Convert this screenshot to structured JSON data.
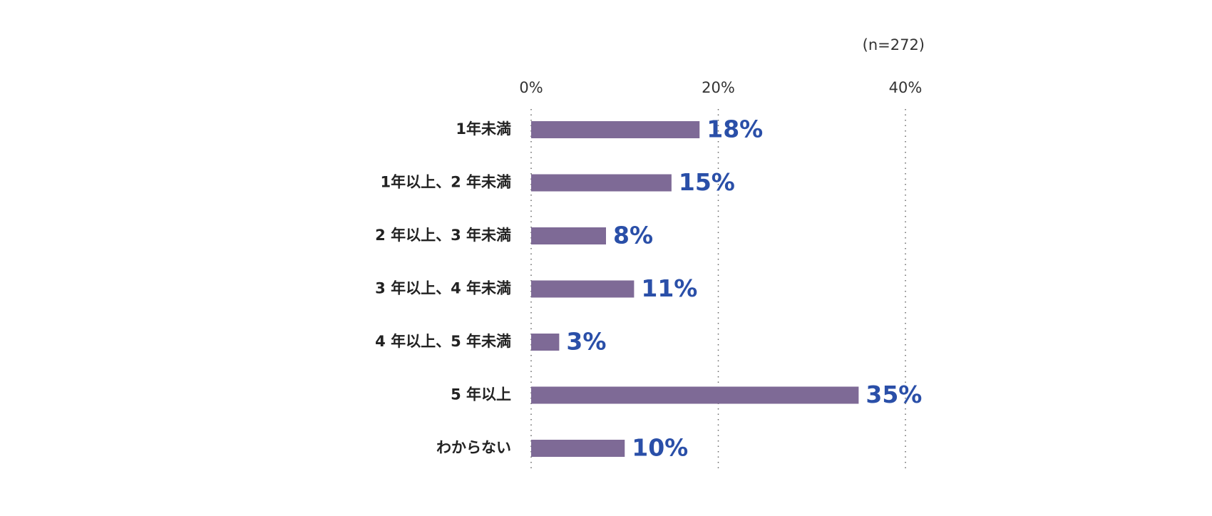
{
  "chart_data": {
    "type": "bar",
    "orientation": "horizontal",
    "note": "(n=272)",
    "categories": [
      "1年未満",
      "1年以上、2 年未満",
      "2 年以上、3 年未満",
      "3 年以上、4 年未満",
      "4 年以上、5 年未満",
      "5 年以上",
      "わからない"
    ],
    "values": [
      18,
      15,
      8,
      11,
      3,
      35,
      10
    ],
    "value_labels": [
      "18%",
      "15%",
      "8%",
      "11%",
      "3%",
      "35%",
      "10%"
    ],
    "color": "#7e6a96",
    "label_color": "#2a4fa8",
    "xlim": [
      0,
      40
    ],
    "xticks": [
      {
        "value": 0,
        "label": "0%"
      },
      {
        "value": 20,
        "label": "20%"
      },
      {
        "value": 40,
        "label": "40%"
      }
    ],
    "grid": true
  }
}
